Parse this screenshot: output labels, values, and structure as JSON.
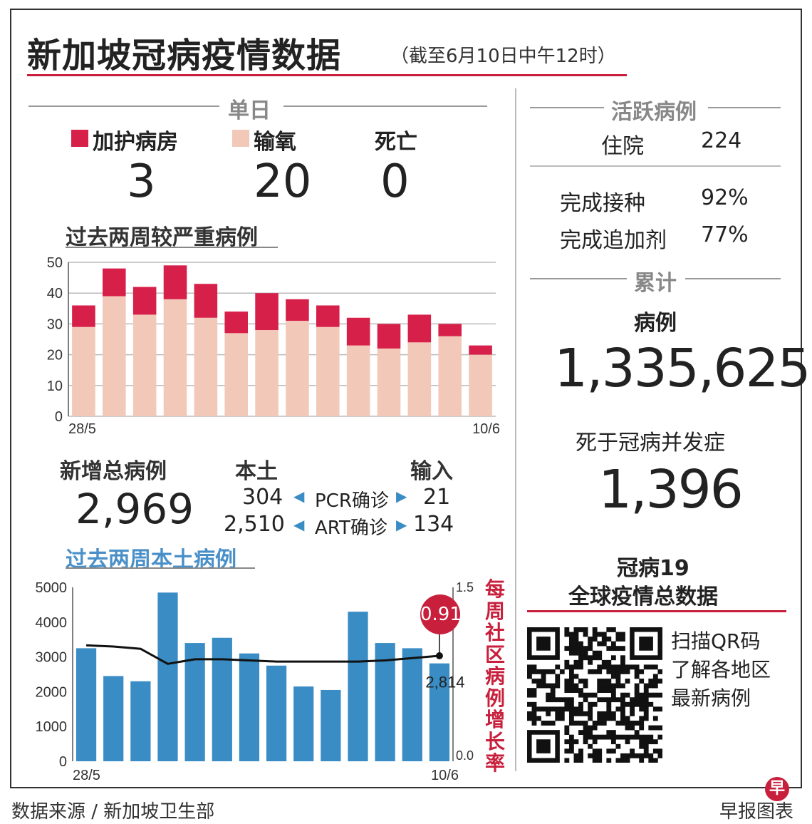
{
  "header": {
    "title": "新加坡冠病疫情数据",
    "subtitle": "（截至6月10日中午12时）"
  },
  "daily": {
    "heading": "单日",
    "icu_label": "加护病房",
    "icu_value": "3",
    "oxygen_label": "输氧",
    "oxygen_value": "20",
    "death_label": "死亡",
    "death_value": "0"
  },
  "new_cases": {
    "total_label": "新增总病例",
    "total_value": "2,969",
    "local_label": "本土",
    "imported_label": "输入",
    "pcr_label": "PCR确诊",
    "art_label": "ART确诊",
    "pcr_local": "304",
    "pcr_imported": "21",
    "art_local": "2,510",
    "art_imported": "134"
  },
  "active": {
    "heading": "活跃病例",
    "hospital_label": "住院",
    "hospital_value": "224",
    "vacc_label": "完成接种",
    "vacc_value": "92%",
    "booster_label": "完成追加剂",
    "booster_value": "77%"
  },
  "cumulative": {
    "heading": "累计",
    "cases_label": "病例",
    "cases_value": "1,335,625",
    "deaths_label": "死于冠病并发症",
    "deaths_value": "1,396"
  },
  "global": {
    "title_line1": "冠病19",
    "title_line2": "全球疫情总数据",
    "qr_line1": "扫描QR码",
    "qr_line2": "了解各地区",
    "qr_line3": "最新病例"
  },
  "footer": {
    "source": "数据来源 / 新加坡卫生部",
    "credit": "早报图表",
    "logo_char": "早"
  },
  "colors": {
    "icu": "#d6204a",
    "oxygen": "#f2c9b8",
    "local_bar": "#3a8cc4",
    "accent": "#c8203c"
  },
  "chart_data": [
    {
      "type": "bar",
      "title": "过去两周较严重病例",
      "stacked": true,
      "x_start_label": "28/5",
      "x_end_label": "10/6",
      "ylim": [
        0,
        50
      ],
      "yticks": [
        0,
        10,
        20,
        30,
        40,
        50
      ],
      "grid": true,
      "series": [
        {
          "name": "输氧",
          "color": "#f2c9b8",
          "values": [
            29,
            39,
            33,
            38,
            32,
            27,
            28,
            31,
            29,
            23,
            22,
            24,
            26,
            20
          ]
        },
        {
          "name": "加护病房",
          "color": "#d6204a",
          "values": [
            7,
            9,
            9,
            11,
            11,
            7,
            12,
            7,
            7,
            9,
            8,
            9,
            4,
            3
          ]
        }
      ]
    },
    {
      "type": "bar",
      "title": "过去两周本土病例",
      "x_start_label": "28/5",
      "x_end_label": "10/6",
      "ylim": [
        0,
        5000
      ],
      "yticks": [
        0,
        1000,
        2000,
        3000,
        4000,
        5000
      ],
      "y2lim": [
        0.0,
        1.5
      ],
      "y2_label": "每周社区病例增长率",
      "values": [
        3250,
        2450,
        2300,
        4850,
        3400,
        3550,
        3100,
        2750,
        2150,
        2050,
        4300,
        3400,
        3250,
        2814
      ],
      "last_value_label": "2,814",
      "line_series": {
        "name": "每周社区病例增长率",
        "values": [
          1.0,
          0.99,
          0.97,
          0.84,
          0.88,
          0.88,
          0.87,
          0.86,
          0.86,
          0.86,
          0.86,
          0.87,
          0.89,
          0.91
        ],
        "last_value_label": "0.91"
      }
    }
  ]
}
